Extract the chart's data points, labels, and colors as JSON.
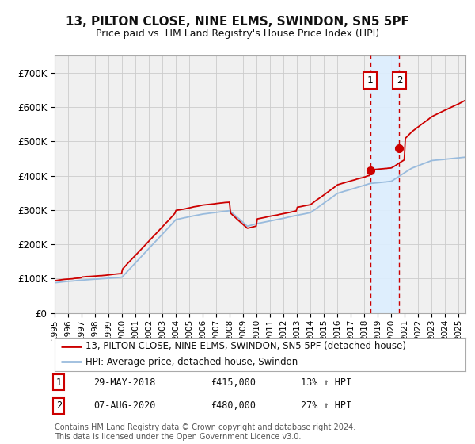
{
  "title": "13, PILTON CLOSE, NINE ELMS, SWINDON, SN5 5PF",
  "subtitle": "Price paid vs. HM Land Registry's House Price Index (HPI)",
  "legend_label_red": "13, PILTON CLOSE, NINE ELMS, SWINDON, SN5 5PF (detached house)",
  "legend_label_blue": "HPI: Average price, detached house, Swindon",
  "transaction1_date": "29-MAY-2018",
  "transaction1_price": "£415,000",
  "transaction1_hpi": "13% ↑ HPI",
  "transaction2_date": "07-AUG-2020",
  "transaction2_price": "£480,000",
  "transaction2_hpi": "27% ↑ HPI",
  "footer": "Contains HM Land Registry data © Crown copyright and database right 2024.\nThis data is licensed under the Open Government Licence v3.0.",
  "background_color": "#ffffff",
  "plot_bg_color": "#f0f0f0",
  "grid_color": "#cccccc",
  "red_color": "#cc0000",
  "blue_color": "#99bbdd",
  "highlight_bg": "#ddeeff",
  "ylim": [
    0,
    750000
  ],
  "yticks": [
    0,
    100000,
    200000,
    300000,
    400000,
    500000,
    600000,
    700000
  ],
  "transaction1_x": 2018.42,
  "transaction2_x": 2020.59,
  "transaction1_y": 415000,
  "transaction2_y": 480000,
  "xmin": 1995,
  "xmax": 2025.5
}
